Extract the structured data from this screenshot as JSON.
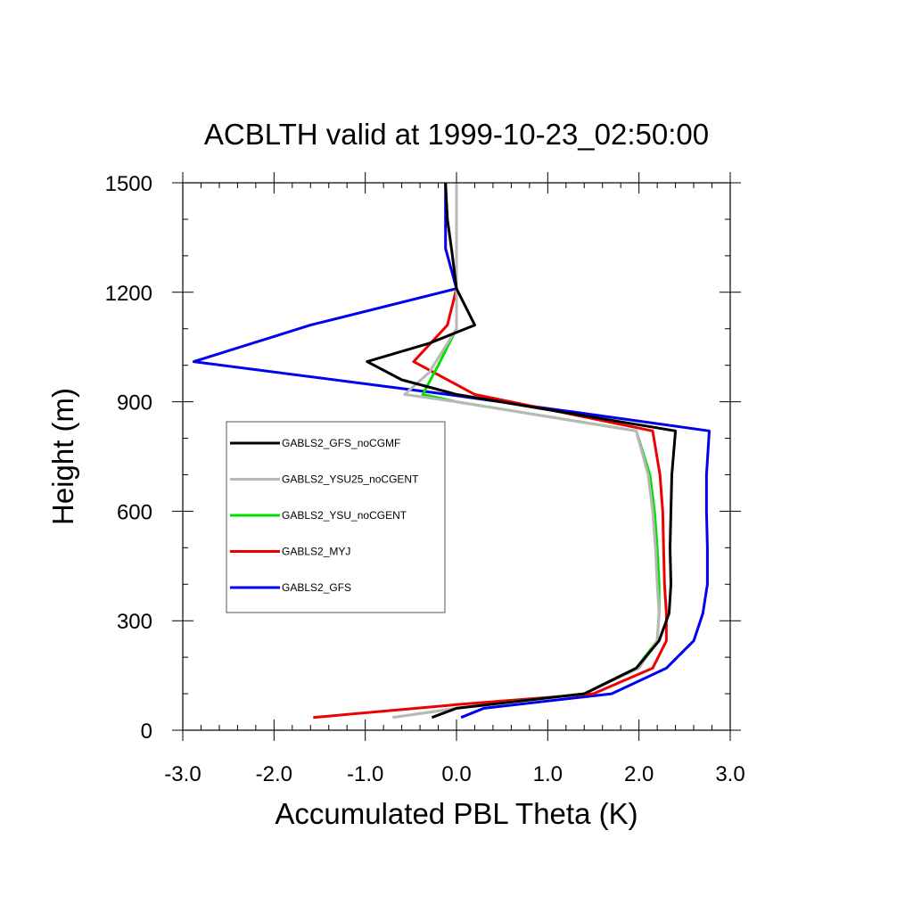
{
  "chart_data": {
    "type": "line",
    "title": "ACBLTH valid at 1999-10-23_02:50:00",
    "xlabel": "Accumulated PBL Theta (K)",
    "ylabel": "Height (m)",
    "xlim": [
      -3.0,
      3.0
    ],
    "ylim": [
      0,
      1500
    ],
    "xticks": [
      -3.0,
      -2.0,
      -1.0,
      0.0,
      1.0,
      2.0,
      3.0
    ],
    "xtick_labels": [
      "-3.0",
      "-2.0",
      "-1.0",
      "0.0",
      "1.0",
      "2.0",
      "3.0"
    ],
    "yticks": [
      0,
      300,
      600,
      900,
      1200,
      1500
    ],
    "ytick_labels": [
      "0",
      "300",
      "600",
      "900",
      "1200",
      "1500"
    ],
    "grid": false,
    "legend_position": "left-middle",
    "series": [
      {
        "name": "GABLS2_GFS_noCGMF",
        "color": "#000000",
        "points": [
          [
            -0.27,
            35
          ],
          [
            0.0,
            60
          ],
          [
            1.4,
            100
          ],
          [
            1.97,
            170
          ],
          [
            2.22,
            245
          ],
          [
            2.33,
            320
          ],
          [
            2.35,
            400
          ],
          [
            2.34,
            500
          ],
          [
            2.35,
            600
          ],
          [
            2.36,
            700
          ],
          [
            2.4,
            820
          ],
          [
            0.0,
            920
          ],
          [
            -0.6,
            960
          ],
          [
            -0.98,
            1010
          ],
          [
            -0.3,
            1060
          ],
          [
            0.2,
            1110
          ],
          [
            0.0,
            1210
          ],
          [
            -0.05,
            1310
          ],
          [
            -0.1,
            1400
          ],
          [
            -0.12,
            1500
          ]
        ]
      },
      {
        "name": "GABLS2_YSU25_noCGENT",
        "color": "#b8b8b8",
        "points": [
          [
            -0.7,
            35
          ],
          [
            0.0,
            60
          ],
          [
            1.4,
            100
          ],
          [
            2.0,
            170
          ],
          [
            2.2,
            245
          ],
          [
            2.22,
            320
          ],
          [
            2.2,
            400
          ],
          [
            2.18,
            500
          ],
          [
            2.15,
            600
          ],
          [
            2.1,
            700
          ],
          [
            1.97,
            820
          ],
          [
            0.0,
            900
          ],
          [
            -0.57,
            920
          ],
          [
            -0.3,
            980
          ],
          [
            0.0,
            1100
          ],
          [
            0.0,
            1210
          ],
          [
            0.0,
            1300
          ],
          [
            0.0,
            1400
          ],
          [
            0.0,
            1500
          ]
        ]
      },
      {
        "name": "GABLS2_YSU_noCGENT",
        "color": "#00e000",
        "points": [
          [
            -0.7,
            35
          ],
          [
            0.0,
            60
          ],
          [
            1.4,
            100
          ],
          [
            1.97,
            170
          ],
          [
            2.2,
            245
          ],
          [
            2.22,
            320
          ],
          [
            2.22,
            400
          ],
          [
            2.2,
            500
          ],
          [
            2.17,
            600
          ],
          [
            2.12,
            700
          ],
          [
            1.97,
            820
          ],
          [
            0.0,
            900
          ],
          [
            -0.37,
            920
          ],
          [
            -0.2,
            1000
          ],
          [
            0.0,
            1100
          ],
          [
            0.0,
            1210
          ],
          [
            0.0,
            1300
          ],
          [
            0.0,
            1400
          ],
          [
            0.0,
            1500
          ]
        ]
      },
      {
        "name": "GABLS2_MYJ",
        "color": "#ee0000",
        "points": [
          [
            -1.57,
            35
          ],
          [
            0.0,
            70
          ],
          [
            1.5,
            100
          ],
          [
            2.15,
            170
          ],
          [
            2.3,
            245
          ],
          [
            2.3,
            320
          ],
          [
            2.28,
            400
          ],
          [
            2.27,
            500
          ],
          [
            2.26,
            600
          ],
          [
            2.23,
            700
          ],
          [
            2.15,
            820
          ],
          [
            0.2,
            920
          ],
          [
            -0.47,
            1010
          ],
          [
            -0.1,
            1110
          ],
          [
            0.0,
            1210
          ],
          [
            0.0,
            1300
          ],
          [
            0.0,
            1400
          ],
          [
            0.0,
            1500
          ]
        ]
      },
      {
        "name": "GABLS2_GFS",
        "color": "#0000ee",
        "points": [
          [
            0.05,
            35
          ],
          [
            0.3,
            60
          ],
          [
            1.7,
            100
          ],
          [
            2.3,
            170
          ],
          [
            2.6,
            245
          ],
          [
            2.7,
            320
          ],
          [
            2.75,
            400
          ],
          [
            2.75,
            500
          ],
          [
            2.74,
            600
          ],
          [
            2.74,
            700
          ],
          [
            2.77,
            820
          ],
          [
            -0.1,
            920
          ],
          [
            -2.88,
            1010
          ],
          [
            -1.6,
            1110
          ],
          [
            0.0,
            1210
          ],
          [
            -0.12,
            1320
          ],
          [
            -0.12,
            1400
          ],
          [
            -0.12,
            1500
          ]
        ]
      }
    ]
  }
}
